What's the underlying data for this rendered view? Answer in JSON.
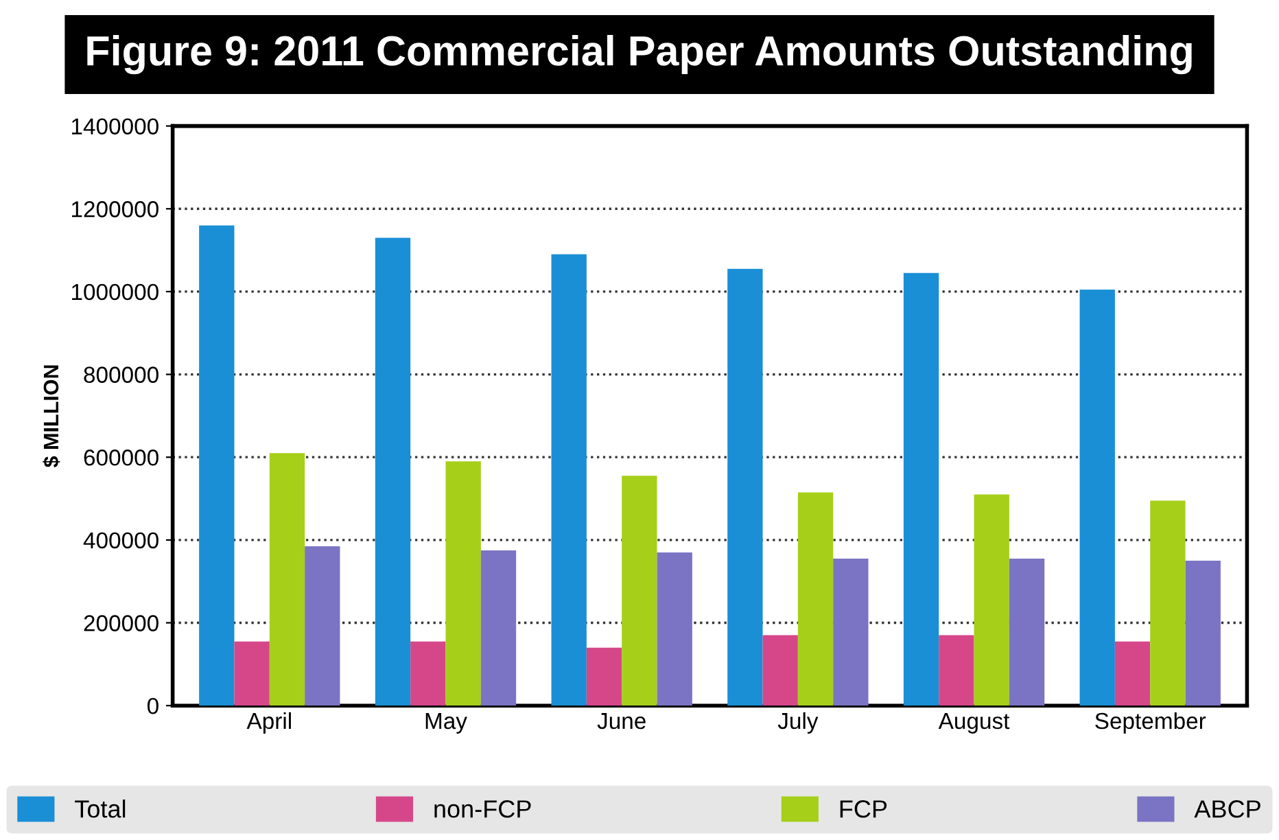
{
  "chart_data": {
    "type": "bar",
    "title": "Figure 9: 2011 Commercial Paper Amounts Outstanding",
    "ylabel": "$ MILLION",
    "categories": [
      "April",
      "May",
      "June",
      "July",
      "August",
      "September"
    ],
    "series": [
      {
        "name": "Total",
        "color": "#1a8fd6",
        "values": [
          1160000,
          1130000,
          1090000,
          1055000,
          1045000,
          1005000
        ]
      },
      {
        "name": "non-FCP",
        "color": "#d6478a",
        "values": [
          155000,
          155000,
          140000,
          170000,
          170000,
          155000
        ]
      },
      {
        "name": "FCP",
        "color": "#a6cf1a",
        "values": [
          610000,
          590000,
          555000,
          515000,
          510000,
          495000
        ]
      },
      {
        "name": "ABCP",
        "color": "#7b74c4",
        "values": [
          385000,
          375000,
          370000,
          355000,
          355000,
          350000
        ]
      }
    ],
    "ylim": [
      0,
      1400000
    ],
    "yticks": [
      0,
      200000,
      400000,
      600000,
      800000,
      1000000,
      1200000,
      1400000
    ],
    "grid": "y",
    "legend": "bottom"
  }
}
